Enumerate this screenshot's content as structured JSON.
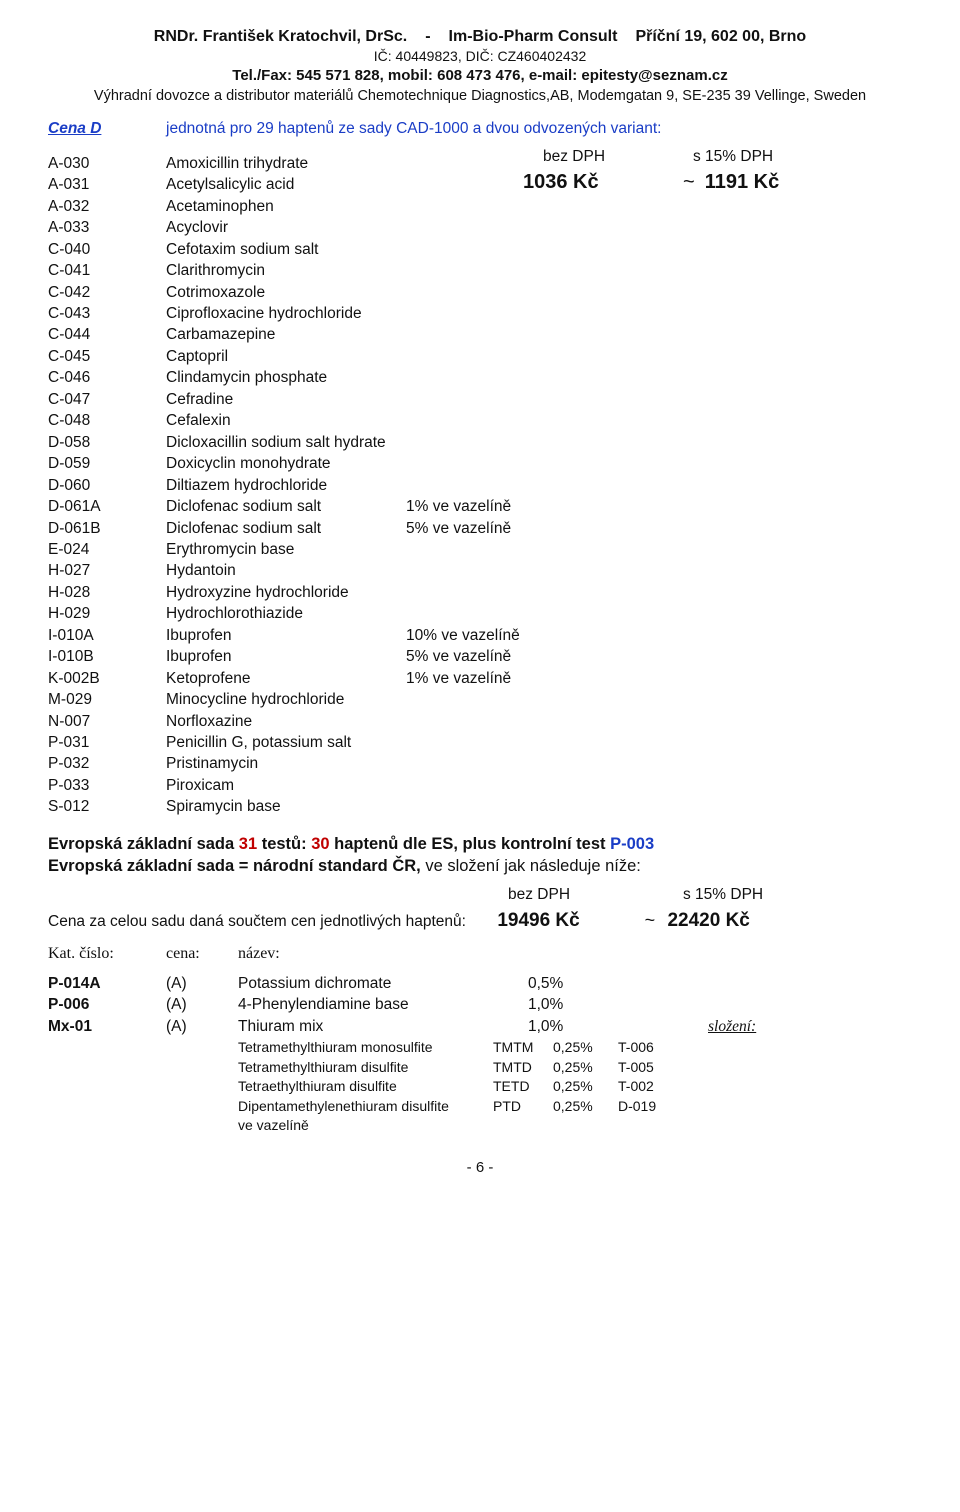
{
  "header": {
    "name": "RNDr. František Kratochvil, DrSc.",
    "dash": "-",
    "company": "Im-Bio-Pharm Consult",
    "address": "Příční 19, 602 00, Brno",
    "ids": "IČ: 40449823, DIČ: CZ460402432",
    "contact": "Tel./Fax: 545 571 828,   mobil: 608 473 476,   e-mail: epitesty@seznam.cz",
    "distrib": "Výhradní dovozce a distributor materiálů Chemotechnique Diagnostics,AB, Modemgatan 9, SE-235 39 Vellinge, Sweden"
  },
  "cena": {
    "label": "Cena D",
    "desc": "jednotná pro 29 haptenů ze sady CAD-1000 a dvou odvozených variant:"
  },
  "price_headers": {
    "bez": "bez DPH",
    "s": "s 15% DPH"
  },
  "price": {
    "p1": "1036 Kč",
    "tilde": "~",
    "p2": "1191 Kč"
  },
  "items": [
    {
      "code": "A-030",
      "name": "Amoxicillin trihydrate"
    },
    {
      "code": "A-031",
      "name": "Acetylsalicylic acid"
    },
    {
      "code": "A-032",
      "name": "Acetaminophen"
    },
    {
      "code": "A-033",
      "name": "Acyclovir"
    },
    {
      "code": "C-040",
      "name": "Cefotaxim sodium salt"
    },
    {
      "code": "C-041",
      "name": "Clarithromycin"
    },
    {
      "code": "C-042",
      "name": "Cotrimoxazole"
    },
    {
      "code": "C-043",
      "name": "Ciprofloxacine hydrochloride"
    },
    {
      "code": "C-044",
      "name": "Carbamazepine"
    },
    {
      "code": "C-045",
      "name": "Captopril"
    },
    {
      "code": "C-046",
      "name": "Clindamycin phosphate"
    },
    {
      "code": "C-047",
      "name": "Cefradine"
    },
    {
      "code": "C-048",
      "name": "Cefalexin"
    },
    {
      "code": "D-058",
      "name": "Dicloxacillin sodium salt hydrate"
    },
    {
      "code": "D-059",
      "name": "Doxicyclin monohydrate"
    },
    {
      "code": "D-060",
      "name": "Diltiazem hydrochloride"
    },
    {
      "code": "D-061A",
      "name": "Diclofenac sodium salt",
      "pct": "1% ve vazelíně"
    },
    {
      "code": "D-061B",
      "name": "Diclofenac sodium salt",
      "pct": "5% ve vazelíně"
    },
    {
      "code": "E-024",
      "name": "Erythromycin base"
    },
    {
      "code": "H-027",
      "name": "Hydantoin"
    },
    {
      "code": "H-028",
      "name": "Hydroxyzine hydrochloride"
    },
    {
      "code": "H-029",
      "name": "Hydrochlorothiazide"
    },
    {
      "code": "I-010A",
      "name": "Ibuprofen",
      "pct": "10% ve vazelíně"
    },
    {
      "code": "I-010B",
      "name": "Ibuprofen",
      "pct": "5% ve vazelíně"
    },
    {
      "code": "K-002B",
      "name": "Ketoprofene",
      "pct": "1% ve vazelíně"
    },
    {
      "code": "M-029",
      "name": "Minocycline hydrochloride"
    },
    {
      "code": "N-007",
      "name": "Norfloxazine"
    },
    {
      "code": "P-031",
      "name": "Penicillin G, potassium salt"
    },
    {
      "code": "P-032",
      "name": "Pristinamycin"
    },
    {
      "code": "P-033",
      "name": "Piroxicam"
    },
    {
      "code": "S-012",
      "name": "Spiramycin base"
    }
  ],
  "section2": {
    "line1a": "Evropská základní sada ",
    "line1b": "31",
    "line1c": " testů: ",
    "line1d": "30",
    "line1e": " haptenů dle ES, plus kontrolní test ",
    "line1f": "P-003",
    "line2a": "Evropská základní sada  =  národní standard ČR,",
    "line2b": " ve složení jak následuje níže:"
  },
  "price2": {
    "label": "Cena za celou sadu daná součtem cen jednotlivých haptenů:",
    "p1": "19496 Kč",
    "tilde": "~",
    "p2": "22420 Kč"
  },
  "cols": {
    "kat": "Kat. číslo:",
    "cena": "cena:",
    "nazev": "název:"
  },
  "mix": [
    {
      "code": "P-014A",
      "price": "(A)",
      "name": "Potassium dichromate",
      "pct": "0,5%"
    },
    {
      "code": "P-006",
      "price": "(A)",
      "name": "4-Phenylendiamine base",
      "pct": "1,0%"
    },
    {
      "code": "Mx-01",
      "price": "(A)",
      "name": "Thiuram mix",
      "pct": "1,0%",
      "extra": "složení:"
    }
  ],
  "sub": [
    {
      "n": "Tetramethylthiuram monosulfite",
      "a": "TMTM",
      "p": "0,25%",
      "c": "T-006"
    },
    {
      "n": "Tetramethylthiuram disulfite",
      "a": "TMTD",
      "p": "0,25%",
      "c": "T-005"
    },
    {
      "n": "Tetraethylthiuram disulfite",
      "a": "TETD",
      "p": "0,25%",
      "c": "T-002"
    },
    {
      "n": "Dipentamethylenethiuram disulfite",
      "a": "PTD",
      "p": "0,25%",
      "c": "D-019"
    },
    {
      "n": "ve vazelíně",
      "a": "",
      "p": "",
      "c": ""
    }
  ],
  "page": "- 6 -"
}
